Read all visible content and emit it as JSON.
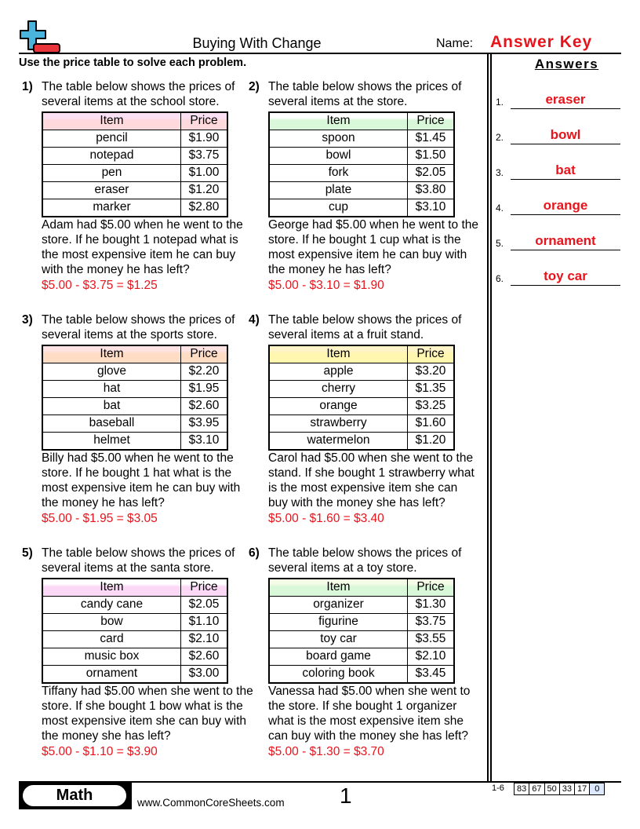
{
  "header": {
    "title": "Buying With Change",
    "name_label": "Name:",
    "name_value": "Answer Key"
  },
  "instructions": "Use the price table to solve each problem.",
  "answers": {
    "title": "Answers",
    "items": [
      {
        "num": "1.",
        "value": "eraser"
      },
      {
        "num": "2.",
        "value": "bowl"
      },
      {
        "num": "3.",
        "value": "bat"
      },
      {
        "num": "4.",
        "value": "orange"
      },
      {
        "num": "5.",
        "value": "ornament"
      },
      {
        "num": "6.",
        "value": "toy car"
      }
    ]
  },
  "table_header": {
    "item": "Item",
    "price": "Price"
  },
  "problems": [
    {
      "num": "1)",
      "intro": "The table below shows the prices of several items at the school store.",
      "header_colors": [
        "#fbe0f4",
        "#ffd9dc"
      ],
      "rows": [
        [
          "pencil",
          "$1.90"
        ],
        [
          "notepad",
          "$3.75"
        ],
        [
          "pen",
          "$1.00"
        ],
        [
          "eraser",
          "$1.20"
        ],
        [
          "marker",
          "$2.80"
        ]
      ],
      "question": "Adam had $5.00 when he went to the store. If he bought 1 notepad what is the most expensive item he can buy with the money he has left?",
      "work": "$5.00 - $3.75 = $1.25"
    },
    {
      "num": "2)",
      "intro": "The table below shows the prices of several items at the store.",
      "header_colors": [
        "#ffffff",
        "#d9f7d9"
      ],
      "rows": [
        [
          "spoon",
          "$1.45"
        ],
        [
          "bowl",
          "$1.50"
        ],
        [
          "fork",
          "$2.05"
        ],
        [
          "plate",
          "$3.80"
        ],
        [
          "cup",
          "$3.10"
        ]
      ],
      "question": "George had $5.00 when he went to the store. If he bought 1 cup what is the most expensive item he can buy with the money he has left?",
      "work": "$5.00 - $3.10 = $1.90"
    },
    {
      "num": "3)",
      "intro": "The table below shows the prices of several items at the sports store.",
      "header_colors": [
        "#ffe3e3",
        "#ffdcc4"
      ],
      "rows": [
        [
          "glove",
          "$2.20"
        ],
        [
          "hat",
          "$1.95"
        ],
        [
          "bat",
          "$2.60"
        ],
        [
          "baseball",
          "$3.95"
        ],
        [
          "helmet",
          "$3.10"
        ]
      ],
      "question": "Billy had $5.00 when he went to the store. If he bought 1 hat what is the most expensive item he can buy with the money he has left?",
      "work": "$5.00 - $1.95 = $3.05"
    },
    {
      "num": "4)",
      "intro": "The table below shows the prices of several items at a fruit stand.",
      "header_colors": [
        "#fff3c8",
        "#fff7b0"
      ],
      "rows": [
        [
          "apple",
          "$3.20"
        ],
        [
          "cherry",
          "$1.35"
        ],
        [
          "orange",
          "$3.25"
        ],
        [
          "strawberry",
          "$1.60"
        ],
        [
          "watermelon",
          "$1.20"
        ]
      ],
      "question": "Carol had $5.00 when she went to the stand. If she bought 1 strawberry what is the most expensive item she can buy with the money she has left?",
      "work": "$5.00 - $1.60 = $3.40"
    },
    {
      "num": "5)",
      "intro": "The table below shows the prices of several items at the santa store.",
      "header_colors": [
        "#ffffff",
        "#fbd9f6"
      ],
      "rows": [
        [
          "candy cane",
          "$2.05"
        ],
        [
          "bow",
          "$1.10"
        ],
        [
          "card",
          "$2.10"
        ],
        [
          "music box",
          "$2.60"
        ],
        [
          "ornament",
          "$3.00"
        ]
      ],
      "question": "Tiffany had $5.00 when she went to the store. If she bought 1 bow what is the most expensive item she can buy with the money she has left?",
      "work": "$5.00 - $1.10 = $3.90"
    },
    {
      "num": "6)",
      "intro": "The table below shows the prices of several items at a toy store.",
      "header_colors": [
        "#f4fbe6",
        "#d9f7d9"
      ],
      "rows": [
        [
          "organizer",
          "$1.30"
        ],
        [
          "figurine",
          "$3.75"
        ],
        [
          "toy car",
          "$3.55"
        ],
        [
          "board game",
          "$2.10"
        ],
        [
          "coloring book",
          "$3.45"
        ]
      ],
      "question": "Vanessa had $5.00 when she went to the store. If she bought 1 organizer what is the most expensive item she can buy with the money she has left?",
      "work": "$5.00 - $1.30 = $3.70"
    }
  ],
  "footer": {
    "subject": "Math",
    "website": "www.CommonCoreSheets.com",
    "page": "1",
    "range": "1-6",
    "scores": [
      "83",
      "67",
      "50",
      "33",
      "17",
      "0"
    ]
  },
  "colors": {
    "accent_red": "#e8141c",
    "logo_blue": "#4ab4dc",
    "logo_red": "#e8363c"
  }
}
